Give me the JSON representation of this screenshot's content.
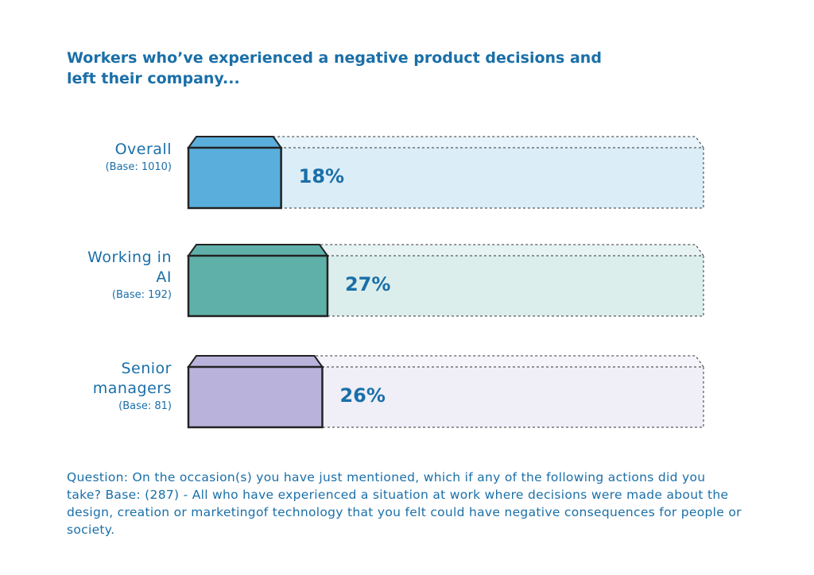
{
  "chart_data": {
    "type": "bar",
    "orientation": "horizontal",
    "title": "Workers who’ve experienced a negative product decisions and left their company...",
    "categories": [
      "Overall",
      "Working in AI",
      "Senior managers"
    ],
    "base_labels": [
      "(Base: 1010)",
      "(Base: 192)",
      "(Base: 81)"
    ],
    "values": [
      18,
      27,
      26
    ],
    "value_labels": [
      "18%",
      "27%",
      "26%"
    ],
    "colors": [
      "#5aaedc",
      "#5fb0a8",
      "#b9b3dc"
    ],
    "footnote": "Question: On the occasion(s) you have just mentioned, which if any of the following actions did you take?  Base: (287) - All who have experienced a situation at work where decisions were made about the design, creation or marketingof technology that you felt could have negative consequences for people or society."
  }
}
